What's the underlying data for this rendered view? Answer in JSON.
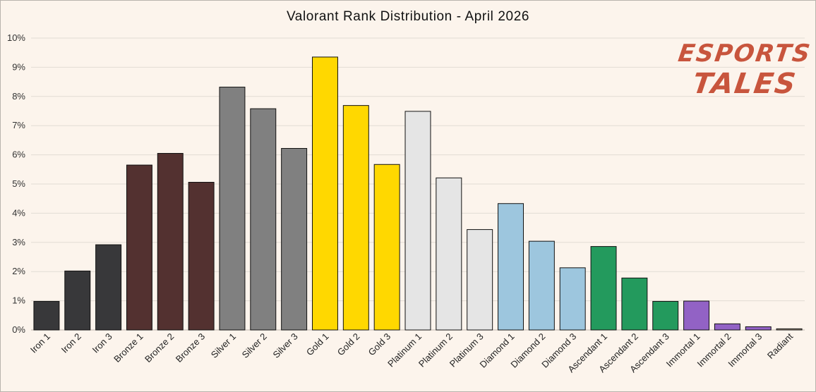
{
  "title": "Valorant Rank Distribution - April 2026",
  "logo": {
    "line1": "ESPORTS",
    "line2": "TALES"
  },
  "chart_data": {
    "type": "bar",
    "title": "Valorant Rank Distribution - April 2026",
    "xlabel": "",
    "ylabel": "",
    "ylim": [
      0,
      10
    ],
    "y_tick_labels": [
      "0%",
      "1%",
      "2%",
      "3%",
      "4%",
      "5%",
      "6%",
      "7%",
      "8%",
      "9%",
      "10%"
    ],
    "grid": true,
    "categories": [
      "Iron 1",
      "Iron 2",
      "Iron 3",
      "Bronze 1",
      "Bronze 2",
      "Bronze 3",
      "Silver 1",
      "Silver 2",
      "Silver 3",
      "Gold 1",
      "Gold 2",
      "Gold 3",
      "Platinum 1",
      "Platinum 2",
      "Platinum 3",
      "Diamond 1",
      "Diamond 2",
      "Diamond 3",
      "Ascendant 1",
      "Ascendant 2",
      "Ascendant 3",
      "Immortal 1",
      "Immortal 2",
      "Immortal 3",
      "Radiant"
    ],
    "values": [
      0.98,
      2.02,
      2.92,
      5.65,
      6.05,
      5.06,
      8.32,
      7.58,
      6.22,
      9.35,
      7.69,
      5.67,
      7.49,
      5.21,
      3.44,
      4.33,
      3.04,
      2.13,
      2.86,
      1.78,
      0.98,
      0.99,
      0.21,
      0.11,
      0.04
    ],
    "colors": [
      "#38383a",
      "#38383a",
      "#38383a",
      "#533130",
      "#533130",
      "#533130",
      "#808080",
      "#808080",
      "#808080",
      "#ffd800",
      "#ffd800",
      "#ffd800",
      "#e5e5e5",
      "#e5e5e5",
      "#e5e5e5",
      "#9dc6de",
      "#9dc6de",
      "#9dc6de",
      "#239a5d",
      "#239a5d",
      "#239a5d",
      "#9262c5",
      "#9262c5",
      "#9262c5",
      "#b7a78e"
    ]
  }
}
